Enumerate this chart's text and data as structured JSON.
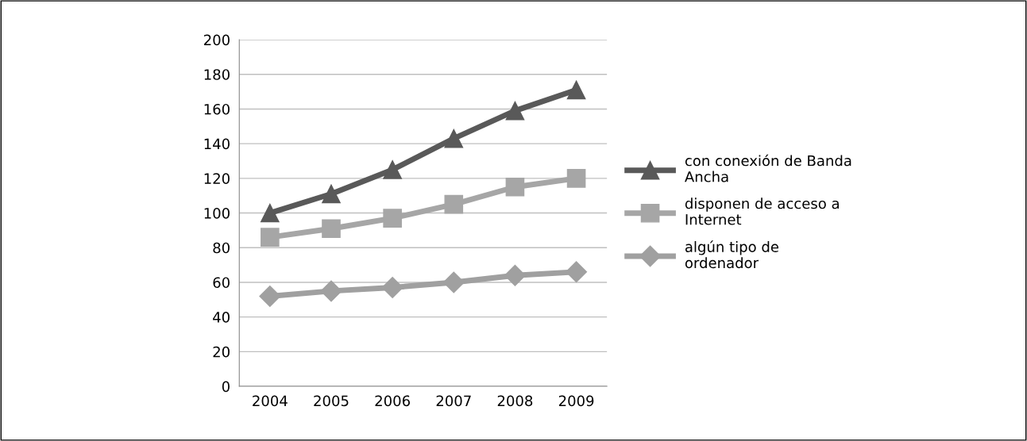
{
  "chart_data": {
    "type": "line",
    "categories": [
      "2004",
      "2005",
      "2006",
      "2007",
      "2008",
      "2009"
    ],
    "series": [
      {
        "name": "con conexión de Banda Ancha",
        "color": "#595959",
        "marker": "triangle",
        "values": [
          100,
          111,
          125,
          143,
          159,
          171
        ]
      },
      {
        "name": "disponen de acceso a Internet",
        "color": "#a6a6a6",
        "marker": "square",
        "values": [
          86,
          91,
          97,
          105,
          115,
          120
        ]
      },
      {
        "name": "algún tipo de ordenador",
        "color": "#a0a0a0",
        "marker": "diamond",
        "values": [
          52,
          55,
          57,
          60,
          64,
          66
        ]
      }
    ],
    "ylim": [
      0,
      200
    ],
    "yticks": [
      0,
      20,
      40,
      60,
      80,
      100,
      120,
      140,
      160,
      180,
      200
    ],
    "grid": "y",
    "legend": "right"
  }
}
